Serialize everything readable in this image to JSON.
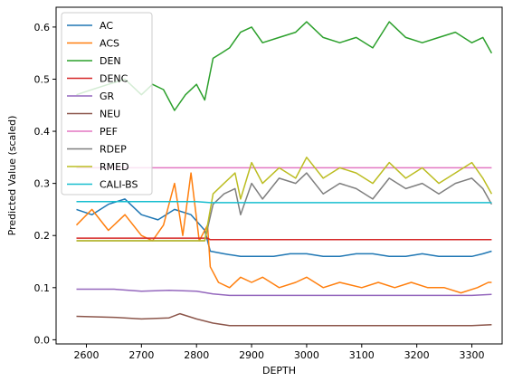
{
  "chart_data": {
    "type": "line",
    "xlabel": "DEPTH",
    "ylabel": "Predicted Value (scaled)",
    "xlim": [
      2545,
      3355
    ],
    "ylim": [
      -0.008,
      0.638
    ],
    "xticks": [
      2600,
      2700,
      2800,
      2900,
      3000,
      3100,
      3200,
      3300
    ],
    "yticks": [
      0.0,
      0.1,
      0.2,
      0.3,
      0.4,
      0.5,
      0.6
    ],
    "ytick_labels": [
      "0.0",
      "0.1",
      "0.2",
      "0.3",
      "0.4",
      "0.5",
      "0.6"
    ],
    "x_range": [
      2582,
      3336
    ],
    "legend_position": "upper-left",
    "series": [
      {
        "name": "AC",
        "color": "#1f77b4",
        "x": [
          2582,
          2610,
          2640,
          2670,
          2700,
          2730,
          2760,
          2790,
          2815,
          2825,
          2850,
          2880,
          2910,
          2940,
          2970,
          3000,
          3030,
          3060,
          3090,
          3120,
          3150,
          3180,
          3210,
          3240,
          3270,
          3300,
          3320,
          3336
        ],
        "y": [
          0.25,
          0.24,
          0.26,
          0.27,
          0.24,
          0.23,
          0.25,
          0.24,
          0.21,
          0.17,
          0.165,
          0.16,
          0.16,
          0.16,
          0.165,
          0.165,
          0.16,
          0.16,
          0.165,
          0.165,
          0.16,
          0.16,
          0.165,
          0.16,
          0.16,
          0.16,
          0.165,
          0.17
        ]
      },
      {
        "name": "ACS",
        "color": "#ff7f0e",
        "x": [
          2582,
          2610,
          2640,
          2670,
          2700,
          2720,
          2740,
          2760,
          2775,
          2790,
          2805,
          2820,
          2825,
          2840,
          2860,
          2880,
          2900,
          2920,
          2950,
          2980,
          3000,
          3030,
          3060,
          3100,
          3130,
          3160,
          3190,
          3220,
          3250,
          3280,
          3310,
          3330,
          3336
        ],
        "y": [
          0.22,
          0.25,
          0.21,
          0.24,
          0.2,
          0.19,
          0.22,
          0.3,
          0.2,
          0.32,
          0.19,
          0.22,
          0.14,
          0.11,
          0.1,
          0.12,
          0.11,
          0.12,
          0.1,
          0.11,
          0.12,
          0.1,
          0.11,
          0.1,
          0.11,
          0.1,
          0.11,
          0.1,
          0.1,
          0.09,
          0.1,
          0.11,
          0.11
        ]
      },
      {
        "name": "DEN",
        "color": "#2ca02c",
        "x": [
          2582,
          2610,
          2640,
          2670,
          2700,
          2720,
          2740,
          2760,
          2780,
          2800,
          2815,
          2830,
          2845,
          2860,
          2880,
          2900,
          2920,
          2950,
          2980,
          3000,
          3030,
          3060,
          3090,
          3120,
          3150,
          3180,
          3210,
          3240,
          3270,
          3300,
          3320,
          3336
        ],
        "y": [
          0.47,
          0.48,
          0.49,
          0.5,
          0.47,
          0.49,
          0.48,
          0.44,
          0.47,
          0.49,
          0.46,
          0.54,
          0.55,
          0.56,
          0.59,
          0.6,
          0.57,
          0.58,
          0.59,
          0.61,
          0.58,
          0.57,
          0.58,
          0.56,
          0.61,
          0.58,
          0.57,
          0.58,
          0.59,
          0.57,
          0.58,
          0.55
        ]
      },
      {
        "name": "DENC",
        "color": "#d62728",
        "x": [
          2582,
          2800,
          2820,
          2825,
          3336
        ],
        "y": [
          0.195,
          0.195,
          0.195,
          0.192,
          0.192
        ]
      },
      {
        "name": "GR",
        "color": "#9467bd",
        "x": [
          2582,
          2650,
          2700,
          2750,
          2800,
          2830,
          2860,
          2900,
          3000,
          3100,
          3200,
          3300,
          3336
        ],
        "y": [
          0.097,
          0.097,
          0.093,
          0.095,
          0.093,
          0.088,
          0.085,
          0.085,
          0.085,
          0.085,
          0.085,
          0.085,
          0.087
        ]
      },
      {
        "name": "NEU",
        "color": "#8c564b",
        "x": [
          2582,
          2650,
          2700,
          2750,
          2770,
          2800,
          2830,
          2860,
          2900,
          3000,
          3100,
          3200,
          3300,
          3336
        ],
        "y": [
          0.045,
          0.043,
          0.04,
          0.042,
          0.05,
          0.04,
          0.032,
          0.027,
          0.027,
          0.027,
          0.027,
          0.027,
          0.027,
          0.029
        ]
      },
      {
        "name": "PEF",
        "color": "#e377c2",
        "x": [
          2582,
          2700,
          2800,
          2900,
          3000,
          3100,
          3200,
          3336
        ],
        "y": [
          0.33,
          0.33,
          0.33,
          0.33,
          0.33,
          0.33,
          0.33,
          0.33
        ]
      },
      {
        "name": "RDEP",
        "color": "#7f7f7f",
        "x": [
          2582,
          2620,
          2660,
          2700,
          2740,
          2780,
          2815,
          2830,
          2850,
          2870,
          2880,
          2900,
          2920,
          2950,
          2980,
          3000,
          3030,
          3060,
          3090,
          3120,
          3150,
          3180,
          3210,
          3240,
          3270,
          3300,
          3320,
          3336
        ],
        "y": [
          0.19,
          0.19,
          0.19,
          0.19,
          0.19,
          0.19,
          0.19,
          0.26,
          0.28,
          0.29,
          0.24,
          0.3,
          0.27,
          0.31,
          0.3,
          0.32,
          0.28,
          0.3,
          0.29,
          0.27,
          0.31,
          0.29,
          0.3,
          0.28,
          0.3,
          0.31,
          0.29,
          0.26
        ]
      },
      {
        "name": "RMED",
        "color": "#bcbd22",
        "x": [
          2582,
          2620,
          2660,
          2700,
          2740,
          2780,
          2815,
          2830,
          2850,
          2870,
          2880,
          2900,
          2920,
          2950,
          2980,
          3000,
          3030,
          3060,
          3090,
          3120,
          3150,
          3180,
          3210,
          3240,
          3270,
          3300,
          3320,
          3336
        ],
        "y": [
          0.19,
          0.19,
          0.19,
          0.19,
          0.19,
          0.19,
          0.19,
          0.28,
          0.3,
          0.32,
          0.27,
          0.34,
          0.3,
          0.33,
          0.31,
          0.35,
          0.31,
          0.33,
          0.32,
          0.3,
          0.34,
          0.31,
          0.33,
          0.3,
          0.32,
          0.34,
          0.31,
          0.28
        ]
      },
      {
        "name": "CALI-BS",
        "color": "#17becf",
        "x": [
          2582,
          2700,
          2800,
          2825,
          2900,
          3000,
          3100,
          3200,
          3336
        ],
        "y": [
          0.265,
          0.265,
          0.265,
          0.263,
          0.263,
          0.263,
          0.263,
          0.263,
          0.263
        ]
      }
    ]
  }
}
